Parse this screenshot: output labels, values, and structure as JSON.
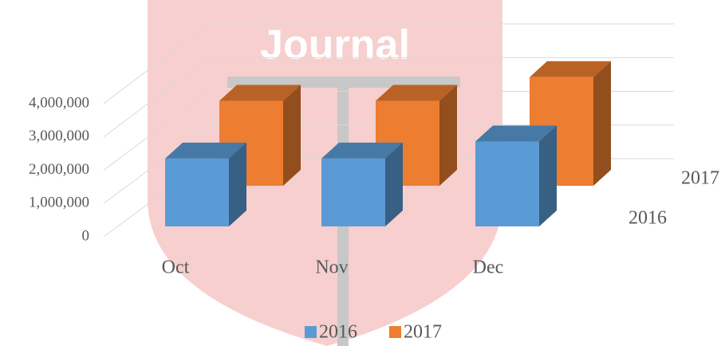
{
  "chart_data": {
    "type": "bar3d",
    "watermark": "Journal",
    "categories": [
      "Oct",
      "Nov",
      "Dec"
    ],
    "series": [
      {
        "name": "2016",
        "color": "#5b9bd5",
        "values": [
          2000000,
          2000000,
          2500000
        ]
      },
      {
        "name": "2017",
        "color": "#ed7d31",
        "values": [
          2500000,
          2500000,
          3200000
        ]
      }
    ],
    "ylim": [
      0,
      4000000
    ],
    "yticks": [
      {
        "value": 0,
        "label": "0"
      },
      {
        "value": 1000000,
        "label": "1,000,000"
      },
      {
        "value": 2000000,
        "label": "2,000,000"
      },
      {
        "value": 3000000,
        "label": "3,000,000"
      },
      {
        "value": 4000000,
        "label": "4,000,000"
      }
    ],
    "grid": true,
    "legend": "bottom"
  }
}
